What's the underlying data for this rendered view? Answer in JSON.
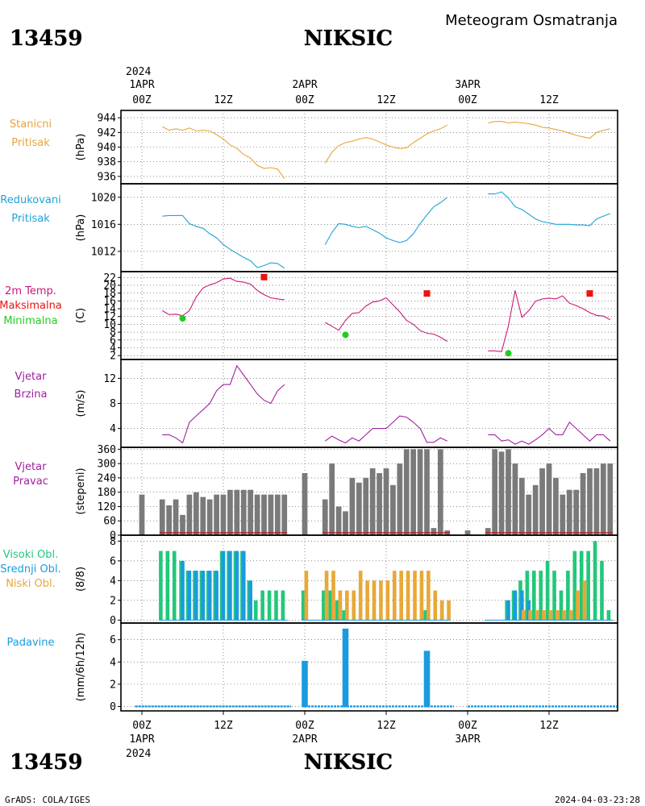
{
  "header": {
    "station_id": "13459",
    "station_name": "NIKSIC",
    "subtitle": "Meteogram Osmatranja"
  },
  "footer": {
    "source": "GrADS: COLA/IGES",
    "timestamp": "2024-04-03-23:28"
  },
  "time_axis": {
    "year": "2024",
    "tick_labels": [
      "00Z",
      "12Z",
      "00Z",
      "12Z",
      "00Z",
      "12Z"
    ],
    "tick_hours": [
      0,
      12,
      24,
      36,
      48,
      60
    ],
    "date_labels": [
      {
        "hour": 0,
        "label": "1APR"
      },
      {
        "hour": 24,
        "label": "2APR"
      },
      {
        "hour": 48,
        "label": "3APR"
      }
    ],
    "range_hours": [
      -2,
      70
    ]
  },
  "colors": {
    "station_pressure": "#e6a53c",
    "reduced_pressure": "#1fa3d6",
    "temperature": "#c8197a",
    "tmax": "#ee1111",
    "tmin": "#22cc22",
    "wind_speed": "#a020a0",
    "wind_dir": "#7a7a7a",
    "wind_dir_base": "#c01010",
    "cloud_high": "#22c87a",
    "cloud_mid": "#1a9be0",
    "cloud_low": "#e8a838",
    "precip": "#1a9be0"
  },
  "chart_data": [
    {
      "id": "station_pressure",
      "type": "line",
      "label_lines": [
        "Stanicni",
        "Pritisak"
      ],
      "ylabel": "(hPa)",
      "ylim": [
        935,
        945
      ],
      "yticks": [
        936,
        938,
        940,
        942,
        944
      ],
      "series": [
        {
          "x": [
            3,
            4,
            5,
            6,
            7,
            8,
            9,
            10,
            11,
            12,
            13,
            14,
            15,
            16,
            17,
            18,
            19,
            20,
            21
          ],
          "y": [
            942.8,
            942.3,
            942.5,
            942.3,
            942.6,
            942.2,
            942.3,
            942.2,
            941.7,
            941.1,
            940.3,
            939.8,
            939.0,
            938.5,
            937.5,
            937.1,
            937.2,
            937.0,
            935.7
          ]
        },
        {
          "x": [
            27,
            28,
            29,
            30,
            31,
            32,
            33,
            34,
            35,
            36,
            37,
            38,
            39,
            40,
            41,
            42,
            43,
            44,
            45
          ],
          "y": [
            937.8,
            939.3,
            940.2,
            940.6,
            940.8,
            941.1,
            941.3,
            941.1,
            940.7,
            940.3,
            940.0,
            939.8,
            939.9,
            940.6,
            941.2,
            941.8,
            942.2,
            942.5,
            943.0
          ]
        },
        {
          "x": [
            51,
            52,
            53,
            54,
            55,
            56,
            57,
            58,
            59,
            60,
            61,
            62,
            63,
            64,
            65,
            66,
            67,
            68,
            69
          ],
          "y": [
            943.3,
            943.5,
            943.5,
            943.3,
            943.4,
            943.3,
            943.2,
            943.0,
            942.7,
            942.6,
            942.4,
            942.2,
            941.9,
            941.6,
            941.4,
            941.2,
            942.0,
            942.3,
            942.5
          ]
        }
      ]
    },
    {
      "id": "reduced_pressure",
      "type": "line",
      "label_lines": [
        "Redukovani",
        "Pritisak"
      ],
      "ylabel": "(hPa)",
      "ylim": [
        1009,
        1022
      ],
      "yticks": [
        1012,
        1016,
        1020
      ],
      "series": [
        {
          "x": [
            3,
            4,
            5,
            6,
            7,
            8,
            9,
            10,
            11,
            12,
            13,
            14,
            15,
            16,
            17,
            18,
            19,
            20,
            21
          ],
          "y": [
            1017.2,
            1017.3,
            1017.3,
            1017.3,
            1016.1,
            1015.7,
            1015.4,
            1014.6,
            1014.0,
            1013.0,
            1012.3,
            1011.7,
            1011.1,
            1010.6,
            1009.6,
            1009.9,
            1010.3,
            1010.2,
            1009.5
          ]
        },
        {
          "x": [
            27,
            28,
            29,
            30,
            31,
            32,
            33,
            34,
            35,
            36,
            37,
            38,
            39,
            40,
            41,
            42,
            43,
            44,
            45
          ],
          "y": [
            1013.0,
            1014.8,
            1016.1,
            1016.0,
            1015.7,
            1015.5,
            1015.7,
            1015.2,
            1014.7,
            1014.0,
            1013.6,
            1013.3,
            1013.6,
            1014.6,
            1016.1,
            1017.4,
            1018.6,
            1019.2,
            1020.0
          ]
        },
        {
          "x": [
            51,
            52,
            53,
            54,
            55,
            56,
            57,
            58,
            59,
            60,
            61,
            62,
            63,
            64,
            65,
            66,
            67,
            68,
            69
          ],
          "y": [
            1020.5,
            1020.5,
            1020.8,
            1019.9,
            1018.6,
            1018.2,
            1017.5,
            1016.8,
            1016.4,
            1016.2,
            1016.0,
            1016.0,
            1016.0,
            1015.9,
            1015.9,
            1015.8,
            1016.8,
            1017.2,
            1017.6
          ]
        }
      ]
    },
    {
      "id": "temperature",
      "type": "line",
      "label_lines": [
        "2m Temp.",
        "Maksimalna",
        "Minimalna"
      ],
      "ylabel": "(C)",
      "ylim": [
        1,
        23.5
      ],
      "yticks": [
        2,
        4,
        6,
        8,
        10,
        12,
        14,
        16,
        18,
        20,
        22
      ],
      "series": [
        {
          "name": "2m Temp.",
          "x": [
            3,
            4,
            5,
            6,
            7,
            8,
            9,
            10,
            11,
            12,
            13,
            14,
            15,
            16,
            17,
            18,
            19,
            20,
            21
          ],
          "y": [
            13.5,
            12.5,
            12.6,
            12.2,
            13.5,
            17.0,
            19.3,
            20.1,
            20.7,
            21.6,
            21.8,
            21.0,
            20.8,
            20.3,
            18.7,
            17.6,
            16.8,
            16.5,
            16.3
          ]
        },
        {
          "name": "2m Temp.",
          "x": [
            27,
            28,
            29,
            30,
            31,
            32,
            33,
            34,
            35,
            36,
            37,
            38,
            39,
            40,
            41,
            42,
            43,
            44,
            45
          ],
          "y": [
            10.5,
            9.5,
            8.5,
            11.0,
            12.8,
            13.0,
            14.7,
            15.7,
            16.0,
            16.8,
            15.0,
            13.2,
            11.0,
            10.0,
            8.4,
            7.7,
            7.5,
            6.7,
            5.6
          ]
        },
        {
          "name": "2m Temp.",
          "x": [
            51,
            52,
            53,
            54,
            55,
            56,
            57,
            58,
            59,
            60,
            61,
            62,
            63,
            64,
            65,
            66,
            67,
            68,
            69
          ],
          "y": [
            3.2,
            3.2,
            3.0,
            9.5,
            18.7,
            11.8,
            13.5,
            15.9,
            16.5,
            16.7,
            16.5,
            17.3,
            15.4,
            14.8,
            14.0,
            13.0,
            12.3,
            12.1,
            11.2
          ]
        }
      ],
      "markers": [
        {
          "name": "Maksimalna",
          "x": [
            18,
            42,
            66
          ],
          "y": [
            22.1,
            17.9,
            17.9
          ]
        },
        {
          "name": "Minimalna",
          "x": [
            6,
            30,
            54
          ],
          "y": [
            11.5,
            7.3,
            2.6
          ]
        }
      ]
    },
    {
      "id": "wind_speed",
      "type": "line",
      "label_lines": [
        "Vjetar",
        "Brzina"
      ],
      "ylabel": "(m/s)",
      "ylim": [
        1,
        15
      ],
      "yticks": [
        4,
        8,
        12
      ],
      "series": [
        {
          "x": [
            3,
            4,
            5,
            6,
            7,
            8,
            9,
            10,
            11,
            12,
            13,
            14,
            15,
            16,
            17,
            18,
            19,
            20,
            21
          ],
          "y": [
            3.0,
            3.0,
            2.5,
            1.7,
            5.0,
            6.0,
            7.0,
            8.0,
            10.0,
            11.0,
            11.0,
            14.0,
            12.5,
            11.0,
            9.5,
            8.5,
            8.0,
            10.0,
            11.0
          ]
        },
        {
          "x": [
            27,
            28,
            29,
            30,
            31,
            32,
            33,
            34,
            35,
            36,
            37,
            38,
            39,
            40,
            41,
            42,
            43,
            44,
            45
          ],
          "y": [
            2.0,
            2.8,
            2.2,
            1.7,
            2.5,
            2.0,
            3.0,
            4.0,
            4.0,
            4.0,
            5.0,
            6.0,
            5.8,
            5.0,
            4.0,
            1.8,
            1.8,
            2.5,
            2.0
          ]
        },
        {
          "x": [
            51,
            52,
            53,
            54,
            55,
            56,
            57,
            58,
            59,
            60,
            61,
            62,
            63,
            64,
            65,
            66,
            67,
            68,
            69
          ],
          "y": [
            3.0,
            3.0,
            2.0,
            2.2,
            1.5,
            2.0,
            1.5,
            2.2,
            3.0,
            4.0,
            3.0,
            3.0,
            5.0,
            4.0,
            3.0,
            2.0,
            3.0,
            3.0,
            2.0
          ]
        }
      ]
    },
    {
      "id": "wind_dir",
      "type": "bar",
      "label_lines": [
        "Vjetar",
        "Pravac"
      ],
      "ylabel": "(stepeni)",
      "ylim": [
        0,
        368
      ],
      "yticks": [
        0,
        60,
        120,
        180,
        240,
        300,
        360
      ],
      "x": [
        0,
        3,
        4,
        5,
        6,
        7,
        8,
        9,
        10,
        11,
        12,
        13,
        14,
        15,
        16,
        17,
        18,
        19,
        20,
        21,
        24,
        27,
        28,
        29,
        30,
        31,
        32,
        33,
        34,
        35,
        36,
        37,
        38,
        39,
        40,
        41,
        42,
        43,
        44,
        45,
        48,
        51,
        52,
        53,
        54,
        55,
        56,
        57,
        58,
        59,
        60,
        61,
        62,
        63,
        64,
        65,
        66,
        67,
        68,
        69
      ],
      "values": [
        170,
        150,
        125,
        150,
        85,
        170,
        180,
        160,
        150,
        170,
        170,
        190,
        190,
        190,
        190,
        170,
        170,
        170,
        170,
        170,
        260,
        150,
        300,
        120,
        100,
        240,
        220,
        240,
        280,
        260,
        280,
        210,
        300,
        360,
        360,
        360,
        360,
        30,
        360,
        20,
        20,
        30,
        360,
        350,
        360,
        300,
        240,
        170,
        210,
        280,
        300,
        240,
        170,
        190,
        190,
        260,
        280,
        280,
        300,
        300
      ]
    },
    {
      "id": "clouds",
      "type": "bar",
      "label_lines": [
        "Visoki Obl.",
        "Srednji Obl.",
        "Niski Obl."
      ],
      "ylabel": "(8/8)",
      "ylim": [
        -0.3,
        8.6
      ],
      "yticks": [
        0,
        2,
        4,
        6,
        8
      ],
      "x": [
        3,
        4,
        5,
        6,
        7,
        8,
        9,
        10,
        11,
        12,
        13,
        14,
        15,
        16,
        17,
        18,
        19,
        20,
        21,
        24,
        27,
        28,
        29,
        30,
        31,
        32,
        33,
        34,
        35,
        36,
        37,
        38,
        39,
        40,
        41,
        42,
        43,
        44,
        45,
        51,
        52,
        53,
        54,
        55,
        56,
        57,
        58,
        59,
        60,
        61,
        62,
        63,
        64,
        65,
        66,
        67,
        68,
        69
      ],
      "series": [
        {
          "name": "Visoki Obl.",
          "values": [
            7,
            7,
            7,
            6,
            5,
            5,
            5,
            5,
            5,
            7,
            7,
            7,
            7,
            4,
            2,
            3,
            3,
            3,
            3,
            3,
            3,
            3,
            2,
            1,
            0,
            0,
            0,
            0,
            0,
            0,
            0,
            0,
            0,
            0,
            0,
            1,
            0,
            0,
            0,
            0,
            0,
            0,
            2,
            3,
            4,
            5,
            5,
            5,
            6,
            5,
            3,
            5,
            7,
            7,
            7,
            8,
            6,
            1
          ]
        },
        {
          "name": "Srednji Obl.",
          "values": [
            0,
            0,
            0,
            6,
            5,
            5,
            5,
            5,
            5,
            7,
            7,
            7,
            7,
            4,
            0,
            0,
            0,
            0,
            0,
            0,
            0,
            0,
            0,
            0,
            0,
            0,
            0,
            0,
            0,
            0,
            0,
            0,
            0,
            0,
            0,
            0,
            0,
            0,
            0,
            0,
            0,
            0,
            2,
            3,
            3,
            2,
            0,
            0,
            0,
            0,
            0,
            0,
            0,
            0,
            0,
            0,
            0,
            0
          ]
        },
        {
          "name": "Niski Obl.",
          "values": [
            0,
            0,
            0,
            0,
            0,
            0,
            0,
            0,
            0,
            0,
            0,
            0,
            0,
            0,
            0,
            0,
            0,
            0,
            0,
            5,
            5,
            5,
            3,
            3,
            3,
            5,
            4,
            4,
            4,
            4,
            5,
            5,
            5,
            5,
            5,
            5,
            3,
            2,
            2,
            0,
            0,
            0,
            0,
            0,
            1,
            1,
            1,
            1,
            1,
            1,
            1,
            1,
            3,
            4,
            0,
            0,
            0,
            0
          ]
        }
      ]
    },
    {
      "id": "precip",
      "type": "bar",
      "label_lines": [
        "Padavine"
      ],
      "ylabel": "(mm/6h/12h)",
      "ylim": [
        -0.4,
        7.5
      ],
      "yticks": [
        0,
        2,
        4,
        6
      ],
      "x": [
        24,
        30,
        42
      ],
      "values": [
        4.1,
        7.0,
        5.0
      ]
    }
  ]
}
